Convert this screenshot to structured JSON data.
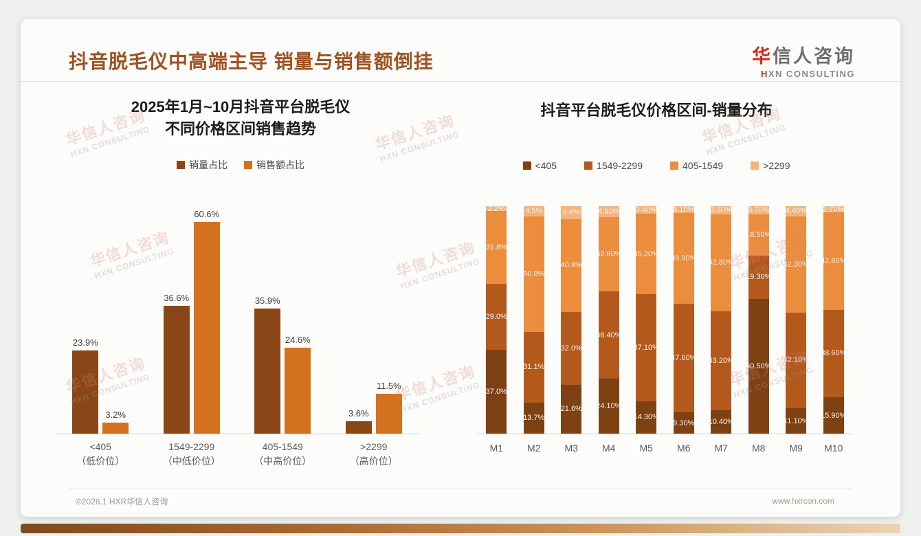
{
  "header": {
    "title": "抖音脱毛仪中高端主导 销量与销售额倒挂",
    "logo": {
      "cn_first": "华",
      "cn_rest": "信人咨询",
      "en_first": "H",
      "en_rest": "XN CONSULTING"
    }
  },
  "watermark": {
    "line1": "华信人咨询",
    "line2": "HXN CONSULTING"
  },
  "footer": {
    "copyright": "©2026.1 HXR华信人咨询",
    "website": "www.hxrcon.com"
  },
  "colors": {
    "title_brown": "#9d5222",
    "logo_red": "#d42a1e",
    "dark_brown": "#8a4617",
    "orange": "#d4711f",
    "stack_dark": "#7e4113",
    "stack_medium": "#b4591c",
    "stack_bright": "#ec8d3d",
    "stack_light": "#f4b47e"
  },
  "chart_data": [
    {
      "type": "bar",
      "stacked": false,
      "title": "2025年1月~10月抖音平台脱毛仪 不同价格区间销售趋势",
      "title_line1": "2025年1月~10月抖音平台脱毛仪",
      "title_line2": "不同价格区间销售趋势",
      "categories": [
        "<405",
        "1549-2299",
        "405-1549",
        ">2299"
      ],
      "category_sublabels": [
        "（低价位）",
        "（中低价位）",
        "（中高价位）",
        "（高价位）"
      ],
      "series": [
        {
          "name": "销量占比",
          "color": "#8a4617",
          "values": [
            23.9,
            36.6,
            35.9,
            3.6
          ],
          "labels": [
            "23.9%",
            "36.6%",
            "35.9%",
            "3.6%"
          ]
        },
        {
          "name": "销售额占比",
          "color": "#d4711f",
          "values": [
            3.2,
            60.6,
            24.6,
            11.5
          ],
          "labels": [
            "3.2%",
            "60.6%",
            "24.6%",
            "11.5%"
          ]
        }
      ],
      "xlabel": "",
      "ylabel": "",
      "ylim": [
        0,
        65
      ],
      "grid": false,
      "legend_position": "top"
    },
    {
      "type": "bar",
      "stacked": true,
      "title": "抖音平台脱毛仪价格区间-销量分布",
      "categories": [
        "M1",
        "M2",
        "M3",
        "M4",
        "M5",
        "M6",
        "M7",
        "M8",
        "M9",
        "M10"
      ],
      "series": [
        {
          "name": "<405",
          "color": "#7e4113",
          "values": [
            37.0,
            13.7,
            21.6,
            24.1,
            14.3,
            9.3,
            10.4,
            60.5,
            11.1,
            15.9
          ],
          "labels": [
            "37.0%",
            "13.7%",
            "21.6%",
            "24.10%",
            "14.30%",
            "9.30%",
            "10.40%",
            "60.50%",
            "11.10%",
            "15.90%"
          ]
        },
        {
          "name": "1549-2299",
          "color": "#b4591c",
          "values": [
            29.0,
            31.1,
            32.0,
            38.4,
            47.1,
            47.6,
            43.2,
            19.3,
            42.1,
            38.6
          ],
          "labels": [
            "29.0%",
            "31.1%",
            "32.0%",
            "38.40%",
            "47.10%",
            "47.60%",
            "43.20%",
            "19.30%",
            "42.10%",
            "38.60%"
          ]
        },
        {
          "name": "405-1549",
          "color": "#ec8d3d",
          "values": [
            31.8,
            50.8,
            40.8,
            32.6,
            35.2,
            39.9,
            42.8,
            18.5,
            42.3,
            42.8
          ],
          "labels": [
            "31.8%",
            "50.8%",
            "40.8%",
            "32.60%",
            "35.20%",
            "39.90%",
            "42.80%",
            "18.50%",
            "42.30%",
            "42.80%"
          ]
        },
        {
          "name": ">2299",
          "color": "#f4b47e",
          "values": [
            2.2,
            4.5,
            5.6,
            4.9,
            3.4,
            3.1,
            3.5,
            3.7,
            4.4,
            2.7
          ],
          "labels": [
            "2.2%",
            "4.5%",
            "5.6%",
            "4.90%",
            "3.40%",
            "3.10%",
            "3.50%",
            "3.70%",
            "4.40%",
            "2.70%"
          ]
        }
      ],
      "xlabel": "",
      "ylabel": "",
      "ylim": [
        0,
        100
      ],
      "grid": false,
      "legend_position": "top",
      "stack_order": "bottom-to-top"
    }
  ]
}
